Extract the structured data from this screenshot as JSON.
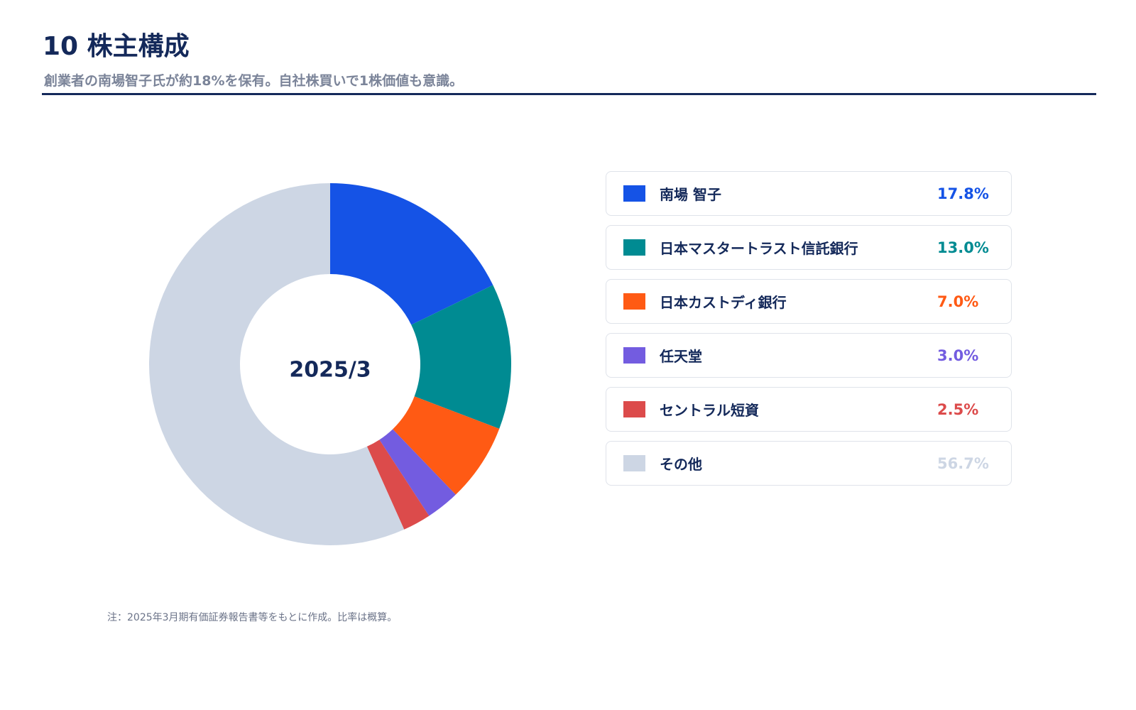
{
  "header": {
    "title": "10 株主構成",
    "subtitle": "創業者の南場智子氏が約18%を保有。自社株買いで1株価値も意識。"
  },
  "chart_data": {
    "type": "pie",
    "variant": "donut",
    "center_label": "2025/3",
    "start_angle_deg": 0,
    "direction": "clockwise",
    "legend_position": "right",
    "categories": [
      "南場 智子",
      "日本マスタートラスト信託銀行",
      "日本カストディ銀行",
      "任天堂",
      "セントラル短資",
      "その他"
    ],
    "values": [
      17.8,
      13.0,
      7.0,
      3.0,
      2.5,
      56.7
    ],
    "value_labels": [
      "17.8%",
      "13.0%",
      "7.0%",
      "3.0%",
      "2.5%",
      "56.7%"
    ],
    "colors": [
      "#1553e6",
      "#008b92",
      "#ff5a14",
      "#735ce0",
      "#dc4b4b",
      "#cdd6e4"
    ]
  },
  "footer": {
    "note": "注：2025年3月期有価証券報告書等をもとに作成。比率は概算。"
  },
  "theme": {
    "title_color": "#14295a",
    "subtitle_color": "#7b8499",
    "rule_color": "#14295a"
  }
}
